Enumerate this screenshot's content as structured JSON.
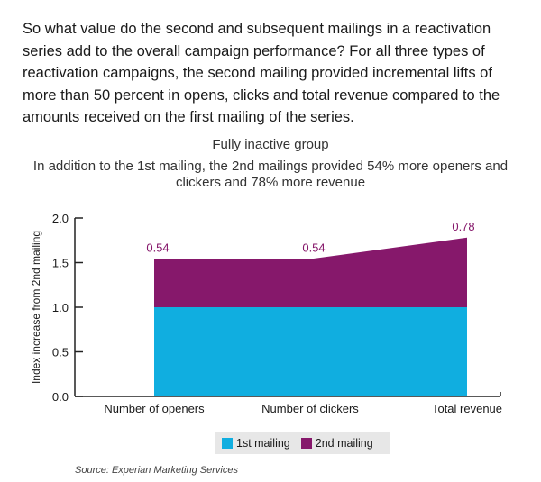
{
  "intro_text": "So what value do the second and subsequent mailings in a reactivation series add to the overall campaign performance?  For all three types of reactivation campaigns, the second mailing provided incremental lifts of more than 50 percent in opens, clicks and total revenue compared to the amounts received on the first mailing of the series.",
  "source": "Source: Experian Marketing Services",
  "colors": {
    "first": "#10aee0",
    "second": "#86186b",
    "axis": "#222222",
    "label": "#86186b"
  },
  "chart_data": {
    "type": "area",
    "stacked": true,
    "title": "Fully inactive group",
    "subtitle": "In addition to the 1st mailing, the 2nd mailings provided 54% more openers and clickers and 78% more revenue",
    "xlabel": "",
    "ylabel": "Index increase from 2nd mailing",
    "categories": [
      "Number of openers",
      "Number of clickers",
      "Total revenue"
    ],
    "series": [
      {
        "name": "1st mailing",
        "values": [
          1.0,
          1.0,
          1.0
        ]
      },
      {
        "name": "2nd mailing",
        "values": [
          0.54,
          0.54,
          0.78
        ]
      }
    ],
    "data_labels": [
      "0.54",
      "0.54",
      "0.78"
    ],
    "yticks": [
      "0.0",
      "0.5",
      "1.0",
      "1.5",
      "2.0"
    ],
    "ylim": [
      0,
      2.0
    ],
    "grid": false,
    "legend_position": "bottom"
  }
}
